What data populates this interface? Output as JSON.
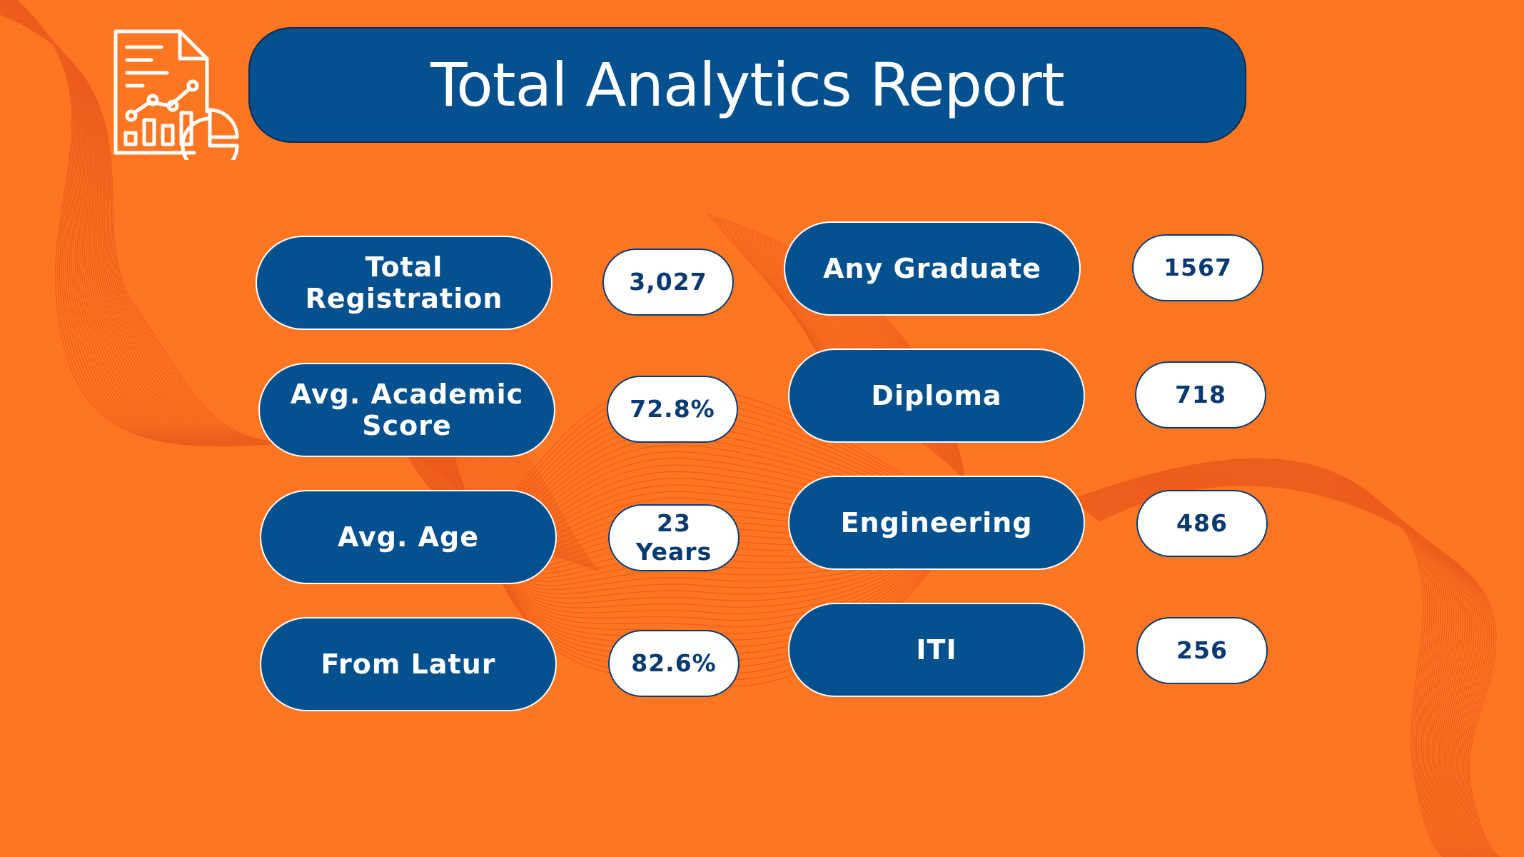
{
  "title": "Total Analytics Report",
  "icons": {
    "report": "analytics-report-icon"
  },
  "colors": {
    "background": "#FF7622",
    "accent": "#05508F",
    "value_text": "#0A3B70",
    "value_bg": "#FFFFFF"
  },
  "left_metrics": [
    {
      "label": "Total Registration",
      "value": "3,027"
    },
    {
      "label": "Avg. Academic Score",
      "value": "72.8%"
    },
    {
      "label": "Avg. Age",
      "value": "23 Years"
    },
    {
      "label": "From Latur",
      "value": "82.6%"
    }
  ],
  "right_metrics": [
    {
      "label": "Any Graduate",
      "value": "1567"
    },
    {
      "label": "Diploma",
      "value": "718"
    },
    {
      "label": "Engineering",
      "value": "486"
    },
    {
      "label": "ITI",
      "value": "256"
    }
  ]
}
